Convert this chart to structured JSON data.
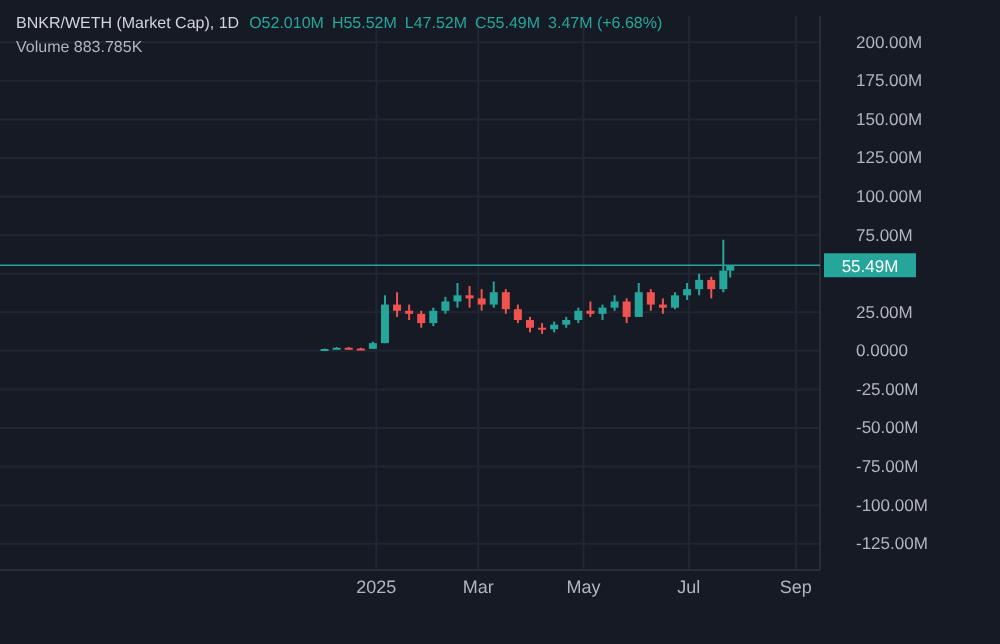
{
  "chart_data": {
    "type": "candlestick",
    "title": "BNKR/WETH (Market Cap), 1D",
    "annotations": [
      "O52.010M",
      "H55.52M",
      "L47.52M",
      "C55.49M",
      "3.47M (+6.68%)",
      "Volume 883.785K"
    ],
    "x": [
      "2024-12-02",
      "2024-12-09",
      "2024-12-16",
      "2024-12-23",
      "2024-12-30",
      "2025-01-06",
      "2025-01-13",
      "2025-01-20",
      "2025-01-27",
      "2025-02-03",
      "2025-02-10",
      "2025-02-17",
      "2025-02-24",
      "2025-03-03",
      "2025-03-10",
      "2025-03-17",
      "2025-03-24",
      "2025-03-31",
      "2025-04-07",
      "2025-04-14",
      "2025-04-21",
      "2025-04-28",
      "2025-05-05",
      "2025-05-12",
      "2025-05-19",
      "2025-05-26",
      "2025-06-02",
      "2025-06-09",
      "2025-06-16",
      "2025-06-23",
      "2025-06-30",
      "2025-07-07",
      "2025-07-14",
      "2025-07-21",
      "2025-07-25"
    ],
    "ohlc": [
      [
        0.8,
        1.5,
        0.5,
        1.2
      ],
      [
        1.2,
        2.5,
        1,
        2
      ],
      [
        2,
        2.5,
        1.2,
        1.5
      ],
      [
        1.5,
        2,
        1,
        1.3
      ],
      [
        1.3,
        6,
        1.2,
        5
      ],
      [
        5,
        36,
        5,
        30
      ],
      [
        30,
        38,
        22,
        26
      ],
      [
        26,
        30,
        20,
        24
      ],
      [
        24,
        26,
        15,
        18
      ],
      [
        18,
        28,
        16,
        26
      ],
      [
        26,
        35,
        24,
        32
      ],
      [
        32,
        44,
        28,
        36
      ],
      [
        36,
        42,
        28,
        34
      ],
      [
        34,
        40,
        26,
        30
      ],
      [
        30,
        45,
        28,
        38
      ],
      [
        38,
        40,
        24,
        27
      ],
      [
        27,
        30,
        18,
        20
      ],
      [
        20,
        22,
        12,
        15
      ],
      [
        15,
        18,
        11,
        14
      ],
      [
        14,
        19,
        12,
        17
      ],
      [
        17,
        22,
        15,
        20
      ],
      [
        20,
        28,
        18,
        26
      ],
      [
        26,
        32,
        22,
        24
      ],
      [
        24,
        30,
        20,
        28
      ],
      [
        28,
        36,
        26,
        32
      ],
      [
        32,
        34,
        18,
        22
      ],
      [
        22,
        44,
        22,
        38
      ],
      [
        38,
        40,
        26,
        30
      ],
      [
        30,
        34,
        24,
        28
      ],
      [
        28,
        38,
        27,
        36
      ],
      [
        36,
        44,
        33,
        40
      ],
      [
        40,
        50,
        36,
        46
      ],
      [
        46,
        48,
        34,
        40
      ],
      [
        40,
        72,
        38,
        52
      ],
      [
        52.01,
        55.52,
        47.52,
        55.49
      ]
    ],
    "xlim": [
      "2024-05-28",
      "2025-09-15"
    ],
    "xticks": [
      {
        "value": "2025-01-01",
        "label": "2025"
      },
      {
        "value": "2025-03-01",
        "label": "Mar"
      },
      {
        "value": "2025-05-01",
        "label": "May"
      },
      {
        "value": "2025-07-01",
        "label": "Jul"
      },
      {
        "value": "2025-09-01",
        "label": "Sep"
      }
    ],
    "ylim": [
      -142,
      217
    ],
    "yticks": [
      {
        "value": 200,
        "label": "200.00M"
      },
      {
        "value": 175,
        "label": "175.00M"
      },
      {
        "value": 150,
        "label": "150.00M"
      },
      {
        "value": 125,
        "label": "125.00M"
      },
      {
        "value": 100,
        "label": "100.00M"
      },
      {
        "value": 75,
        "label": "75.00M"
      },
      {
        "value": 50,
        "label": null
      },
      {
        "value": 25,
        "label": "25.00M"
      },
      {
        "value": 0,
        "label": "0.0000"
      },
      {
        "value": -25,
        "label": "-25.00M"
      },
      {
        "value": -50,
        "label": "-50.00M"
      },
      {
        "value": -75,
        "label": "-75.00M"
      },
      {
        "value": -100,
        "label": "-100.00M"
      },
      {
        "value": -125,
        "label": "-125.00M"
      }
    ],
    "ref_lines": [
      {
        "axis": "y",
        "value": 55.49,
        "label": "55.49M",
        "color": "#26a69a"
      }
    ],
    "grid": true
  }
}
